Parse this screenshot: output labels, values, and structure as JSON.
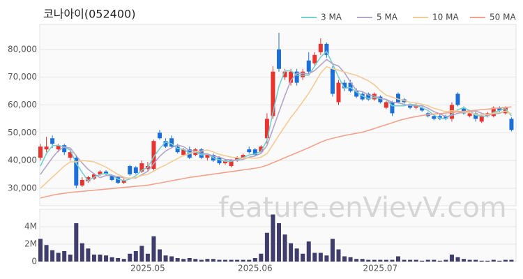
{
  "chart_data": [
    {
      "type": "candlestick",
      "title": "코나아이(052400)",
      "watermark": "feature.enVievV.com",
      "up_color": "#e8332f",
      "down_color": "#1d6fd8",
      "open": [
        41000,
        44000,
        48000,
        44000,
        45500,
        41000,
        41000,
        31000,
        32500,
        33500,
        35000,
        36000,
        34500,
        34000,
        32000,
        38000,
        37500,
        36000,
        37000,
        37000,
        50000,
        47000,
        48000,
        45000,
        42000,
        44000,
        42000,
        44000,
        41000,
        42000,
        41000,
        39000,
        38000,
        40000,
        41000,
        44000,
        44000,
        43000,
        48000,
        56000,
        80000,
        70000,
        68000,
        72000,
        70000,
        76000,
        75000,
        79000,
        82000,
        73000,
        61000,
        68000,
        68000,
        65000,
        64000,
        64000,
        62000,
        63000,
        59000,
        61000,
        64000,
        62000,
        60000,
        59000,
        59000,
        57000,
        56000,
        56000,
        56000,
        55000,
        64000,
        59000,
        56000,
        57000,
        54000,
        56000,
        56000,
        59000,
        57000,
        55000
      ],
      "high": [
        46000,
        48500,
        49000,
        46000,
        46000,
        44000,
        42000,
        34000,
        34500,
        35500,
        36500,
        36500,
        35000,
        34500,
        33500,
        38500,
        38000,
        40000,
        39500,
        47500,
        51000,
        48000,
        49000,
        46000,
        44500,
        45000,
        44500,
        44500,
        42500,
        42500,
        41500,
        40500,
        40500,
        41500,
        42500,
        45000,
        44500,
        45500,
        57000,
        74000,
        86000,
        73000,
        73000,
        73000,
        73000,
        79000,
        79000,
        84000,
        82500,
        74000,
        69000,
        69000,
        69000,
        66000,
        64500,
        64500,
        64500,
        63500,
        61500,
        61500,
        64500,
        62500,
        60500,
        60500,
        59500,
        57500,
        56500,
        57000,
        56500,
        61000,
        64500,
        59500,
        57500,
        57500,
        56500,
        57500,
        59500,
        59500,
        59500,
        55500
      ],
      "low": [
        40000,
        43000,
        44500,
        43000,
        42000,
        40000,
        30000,
        30500,
        32000,
        33000,
        34500,
        34500,
        32500,
        31500,
        31500,
        34500,
        35000,
        35500,
        36000,
        36000,
        47500,
        44500,
        44500,
        42500,
        41500,
        40500,
        41500,
        40500,
        40000,
        39500,
        38500,
        38500,
        37500,
        39500,
        40500,
        42500,
        41500,
        42500,
        46000,
        55000,
        72000,
        69000,
        67000,
        67000,
        69000,
        71000,
        74000,
        78000,
        77000,
        63000,
        60000,
        65000,
        64500,
        62500,
        61500,
        61500,
        61500,
        60500,
        58500,
        56000,
        60500,
        60500,
        58500,
        58500,
        57500,
        55500,
        54500,
        54500,
        54500,
        54000,
        59500,
        56500,
        55500,
        54000,
        53500,
        55500,
        55500,
        57500,
        56500,
        50500
      ],
      "close": [
        45000,
        45000,
        46000,
        45500,
        43000,
        43000,
        31000,
        33000,
        34000,
        35000,
        36000,
        35000,
        33000,
        32000,
        33000,
        35000,
        35500,
        39000,
        38000,
        47000,
        48000,
        45000,
        45000,
        43000,
        44000,
        41000,
        44000,
        41000,
        42000,
        40000,
        39000,
        40000,
        40000,
        41000,
        42000,
        43000,
        42000,
        45000,
        55000,
        72000,
        73000,
        72000,
        72000,
        68000,
        72000,
        72000,
        78000,
        82000,
        78000,
        64000,
        68000,
        66000,
        65000,
        63000,
        62000,
        62000,
        64000,
        61000,
        61000,
        57000,
        61000,
        61000,
        59000,
        60000,
        58000,
        56000,
        55000,
        55000,
        55000,
        60000,
        60000,
        57000,
        57000,
        55000,
        56000,
        57000,
        59000,
        58000,
        59000,
        51000
      ],
      "lines": [
        {
          "name": "3 MA",
          "color": "#72d0cf",
          "values": [
            38000,
            42500,
            45300,
            45500,
            44800,
            43800,
            39000,
            35700,
            32700,
            34000,
            35000,
            35300,
            34700,
            33300,
            32700,
            33300,
            34500,
            36500,
            37500,
            41300,
            44300,
            46700,
            46000,
            44300,
            44000,
            42700,
            43000,
            42000,
            42300,
            41000,
            40300,
            39700,
            39700,
            40300,
            41000,
            42000,
            42300,
            43300,
            47300,
            57300,
            66700,
            72300,
            72300,
            70700,
            70700,
            70700,
            74000,
            77300,
            79300,
            74700,
            70000,
            66000,
            66300,
            64700,
            63300,
            62300,
            62700,
            62300,
            62000,
            59700,
            59700,
            59700,
            60300,
            60000,
            59000,
            58000,
            56300,
            55300,
            55000,
            56700,
            58300,
            59000,
            58000,
            56300,
            56000,
            56000,
            57300,
            58000,
            58700,
            56000
          ]
        },
        {
          "name": "5 MA",
          "color": "#b4a4c9",
          "values": [
            35000,
            38000,
            41000,
            43500,
            44900,
            44500,
            41700,
            39100,
            36800,
            35200,
            33800,
            34600,
            34600,
            34200,
            33800,
            33600,
            33700,
            34900,
            36100,
            38900,
            41500,
            43400,
            44600,
            45600,
            45000,
            43600,
            43400,
            42600,
            42400,
            41600,
            41200,
            40400,
            40200,
            40000,
            40400,
            41200,
            41600,
            42600,
            45400,
            51400,
            57400,
            63400,
            68800,
            71400,
            71400,
            71200,
            72400,
            74400,
            76400,
            74800,
            74000,
            71600,
            68200,
            65200,
            64800,
            63600,
            63200,
            62400,
            62000,
            61000,
            60800,
            60200,
            59800,
            59600,
            59800,
            58800,
            57600,
            56800,
            55800,
            56200,
            57000,
            57400,
            57800,
            57800,
            57000,
            56400,
            56800,
            57000,
            57800,
            56800
          ]
        },
        {
          "name": "10 MA",
          "color": "#f3cb94",
          "values": [
            30000,
            32000,
            34000,
            36000,
            38000,
            39500,
            39500,
            40000,
            39800,
            39500,
            38600,
            37600,
            36300,
            35000,
            34000,
            33500,
            33900,
            34600,
            35000,
            36200,
            37400,
            38400,
            39600,
            40700,
            41800,
            42400,
            43200,
            43400,
            43800,
            43100,
            42200,
            41700,
            41200,
            41000,
            40800,
            41000,
            40800,
            41200,
            42500,
            45700,
            49100,
            52300,
            55500,
            58200,
            61200,
            64200,
            67800,
            71500,
            73800,
            73000,
            72500,
            71900,
            71200,
            70700,
            69700,
            68700,
            67300,
            65200,
            63500,
            62800,
            62100,
            61600,
            61000,
            60700,
            60300,
            59700,
            58800,
            58200,
            57600,
            57900,
            57800,
            57400,
            57200,
            56700,
            56500,
            56600,
            57000,
            57300,
            57700,
            56800
          ]
        },
        {
          "name": "50 MA",
          "color": "#f2a28c",
          "values": [
            26500,
            27000,
            27500,
            27900,
            28200,
            28500,
            28700,
            28900,
            29100,
            29300,
            29500,
            29700,
            29900,
            30100,
            30300,
            30500,
            30700,
            30900,
            31100,
            31500,
            31900,
            32300,
            32700,
            33100,
            33500,
            33900,
            34200,
            34500,
            34800,
            35100,
            35400,
            35700,
            36000,
            36300,
            36600,
            36900,
            37200,
            37600,
            38300,
            39200,
            40100,
            41000,
            41900,
            42800,
            43700,
            44600,
            45600,
            46600,
            47400,
            48000,
            48500,
            49000,
            49400,
            49800,
            50200,
            50800,
            51500,
            52200,
            52900,
            53600,
            54300,
            54900,
            55400,
            55800,
            56200,
            56500,
            56700,
            56900,
            57100,
            57300,
            57500,
            57700,
            57900,
            58100,
            58300,
            58500,
            58700,
            58900,
            59100,
            59300
          ]
        }
      ],
      "ylim": [
        23700,
        89000
      ],
      "yticks": [
        {
          "value": 30000,
          "label": "30,000"
        },
        {
          "value": 40000,
          "label": "40,000"
        },
        {
          "value": 50000,
          "label": "50,000"
        },
        {
          "value": 60000,
          "label": "60,000"
        },
        {
          "value": 70000,
          "label": "70,000"
        },
        {
          "value": 80000,
          "label": "80,000"
        }
      ],
      "grid": true
    },
    {
      "type": "bar",
      "color": "#3f3d6b",
      "categories": [
        null,
        null,
        null,
        null,
        null,
        null,
        null,
        null,
        null,
        null,
        null,
        null,
        null,
        null,
        null,
        null,
        null,
        null,
        "2025.05",
        null,
        null,
        null,
        null,
        null,
        null,
        null,
        null,
        null,
        null,
        null,
        null,
        null,
        null,
        null,
        null,
        null,
        "2025.06",
        null,
        null,
        null,
        null,
        null,
        null,
        null,
        null,
        null,
        null,
        null,
        null,
        null,
        null,
        null,
        null,
        null,
        null,
        null,
        null,
        "2025.07",
        null,
        null,
        null,
        null,
        null,
        null,
        null,
        null,
        null,
        null,
        null,
        null,
        null,
        null,
        null,
        null,
        null,
        null,
        null,
        null,
        null,
        null
      ],
      "values": [
        2600000,
        1900000,
        1300000,
        1000000,
        1200000,
        800000,
        4400000,
        2100000,
        1500000,
        800000,
        800000,
        700000,
        500000,
        400000,
        300000,
        900000,
        1200000,
        1800000,
        900000,
        2900000,
        1400000,
        700000,
        600000,
        400000,
        300000,
        400000,
        300000,
        200000,
        300000,
        300000,
        200000,
        200000,
        200000,
        200000,
        200000,
        200000,
        400000,
        900000,
        3300000,
        5400000,
        4400000,
        3100000,
        2100000,
        1500000,
        900000,
        2300000,
        1000000,
        1000000,
        700000,
        2600000,
        1400000,
        600000,
        500000,
        300000,
        300000,
        200000,
        200000,
        200000,
        200000,
        200000,
        600000,
        200000,
        200000,
        200000,
        100000,
        200000,
        200000,
        100000,
        200000,
        800000,
        500000,
        300000,
        200000,
        200000,
        100000,
        100000,
        200000,
        100000,
        200000,
        200000
      ],
      "ylim": [
        0,
        6000000
      ],
      "yticks": [
        0,
        {
          "value": 2000000,
          "label": "2M"
        },
        {
          "value": 4000000,
          "label": "4M"
        }
      ],
      "grid": true
    }
  ]
}
